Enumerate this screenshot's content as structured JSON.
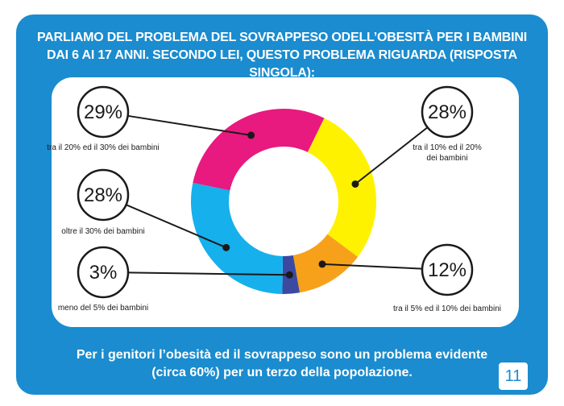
{
  "title": {
    "line1": "PARLIAMO DEL PROBLEMA DEL SOVRAPPESO ODELL’OBESITÀ PER I BAMBINI",
    "line2": "DAI 6 AI 17 ANNI.  SECONDO LEI, QUESTO PROBLEMA RIGUARDA (RISPOSTA SINGOLA):"
  },
  "footer": {
    "line1": "Per i genitori l’obesità ed il sovrappeso sono un problema evidente",
    "line2": "(circa 60%) per un terzo della popolazione."
  },
  "page_number": "11",
  "colors": {
    "panel": "#1a8ccf",
    "magenta": "#e8197f",
    "yellow": "#fff200",
    "orange": "#f7a11a",
    "navy": "#3b4aa0",
    "cyan": "#16b0ec"
  },
  "chart_data": {
    "type": "pie",
    "donut": true,
    "slices": [
      {
        "label": "tra il 10% ed il 20% dei bambini",
        "label_lines": [
          "tra il 10% ed il 20%",
          "dei bambini"
        ],
        "value": 28,
        "display": "28%",
        "color": "#fff200"
      },
      {
        "label": "tra il 5% ed il 10% dei bambini",
        "label_lines": [
          "tra il 5% ed il 10% dei bambini"
        ],
        "value": 12,
        "display": "12%",
        "color": "#f7a11a"
      },
      {
        "label": "meno del 5% dei bambini",
        "label_lines": [
          "meno del 5% dei bambini"
        ],
        "value": 3,
        "display": "3%",
        "color": "#3b4aa0"
      },
      {
        "label": "oltre il 30% dei bambini",
        "label_lines": [
          "oltre il 30% dei bambini"
        ],
        "value": 28,
        "display": "28%",
        "color": "#16b0ec"
      },
      {
        "label": "tra il 20% ed il 30% dei bambini",
        "label_lines": [
          "tra il 20% ed il 30% dei bambini"
        ],
        "value": 29,
        "display": "29%",
        "color": "#e8197f"
      }
    ]
  }
}
